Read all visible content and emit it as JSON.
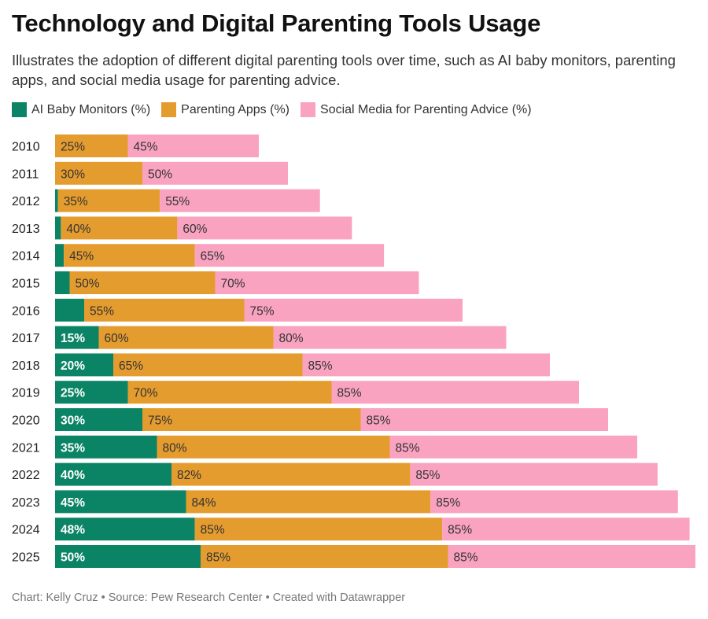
{
  "header": {
    "title": "Technology and Digital Parenting Tools Usage",
    "subtitle": "Illustrates the adoption of different digital parenting tools over time, such as AI baby monitors, parenting apps, and social media usage for parenting advice."
  },
  "footer": {
    "credit": "Chart: Kelly Cruz • Source: Pew Research Center • Created with Datawrapper"
  },
  "chart_data": {
    "type": "bar",
    "orientation": "horizontal",
    "stacked": true,
    "categories": [
      "2010",
      "2011",
      "2012",
      "2013",
      "2014",
      "2015",
      "2016",
      "2017",
      "2018",
      "2019",
      "2020",
      "2021",
      "2022",
      "2023",
      "2024",
      "2025"
    ],
    "series": [
      {
        "name": "AI Baby Monitors (%)",
        "color": "#0b8466",
        "label_color": "#ffffff",
        "values": [
          0,
          0,
          1,
          2,
          3,
          5,
          10,
          15,
          20,
          25,
          30,
          35,
          40,
          45,
          48,
          50
        ],
        "labels": [
          "",
          "",
          "",
          "",
          "",
          "",
          "",
          "15%",
          "20%",
          "25%",
          "30%",
          "35%",
          "40%",
          "45%",
          "48%",
          "50%"
        ]
      },
      {
        "name": "Parenting Apps (%)",
        "color": "#e59c2f",
        "label_color": "#333333",
        "values": [
          25,
          30,
          35,
          40,
          45,
          50,
          55,
          60,
          65,
          70,
          75,
          80,
          82,
          84,
          85,
          85
        ],
        "labels": [
          "25%",
          "30%",
          "35%",
          "40%",
          "45%",
          "50%",
          "55%",
          "60%",
          "65%",
          "70%",
          "75%",
          "80%",
          "82%",
          "84%",
          "85%",
          "85%"
        ]
      },
      {
        "name": "Social Media for Parenting Advice (%)",
        "color": "#f9a3c1",
        "label_color": "#333333",
        "values": [
          45,
          50,
          55,
          60,
          65,
          70,
          75,
          80,
          85,
          85,
          85,
          85,
          85,
          85,
          85,
          85
        ],
        "labels": [
          "45%",
          "50%",
          "55%",
          "60%",
          "65%",
          "70%",
          "75%",
          "80%",
          "85%",
          "85%",
          "85%",
          "85%",
          "85%",
          "85%",
          "85%",
          "85%"
        ]
      }
    ],
    "xlim": [
      0,
      220
    ],
    "grid": false,
    "legend_position": "top-left"
  }
}
